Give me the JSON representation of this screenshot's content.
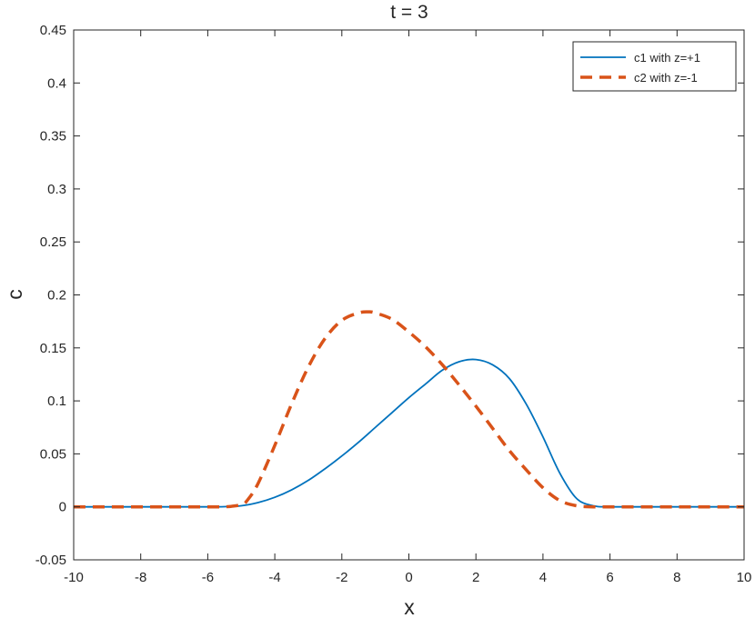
{
  "chart_data": {
    "type": "line",
    "title": "t = 3",
    "xlabel": "x",
    "ylabel": "c",
    "xlim": [
      -10,
      10
    ],
    "ylim": [
      -0.05,
      0.45
    ],
    "xticks": [
      -10,
      -8,
      -6,
      -4,
      -2,
      0,
      2,
      4,
      6,
      8,
      10
    ],
    "yticks": [
      -0.05,
      0,
      0.05,
      0.1,
      0.15,
      0.2,
      0.25,
      0.3,
      0.35,
      0.4,
      0.45
    ],
    "xtick_labels": [
      "-10",
      "-8",
      "-6",
      "-4",
      "-2",
      "0",
      "2",
      "4",
      "6",
      "8",
      "10"
    ],
    "ytick_labels": [
      "-0.05",
      "0",
      "0.05",
      "0.1",
      "0.15",
      "0.2",
      "0.25",
      "0.3",
      "0.35",
      "0.4",
      "0.45"
    ],
    "grid": false,
    "legend_position": "top-right",
    "series": [
      {
        "name": "c1 with z=+1",
        "color": "#0072BD",
        "style": "solid",
        "x": [
          -10,
          -7,
          -6,
          -5.5,
          -5,
          -4.5,
          -4,
          -3.5,
          -3,
          -2.5,
          -2,
          -1.5,
          -1,
          -0.5,
          0,
          0.5,
          1,
          1.5,
          2,
          2.5,
          3,
          3.5,
          4,
          4.5,
          5,
          5.5,
          6,
          8,
          10
        ],
        "y": [
          0,
          0,
          0,
          0.0002,
          0.001,
          0.004,
          0.009,
          0.016,
          0.025,
          0.036,
          0.048,
          0.061,
          0.075,
          0.089,
          0.103,
          0.116,
          0.129,
          0.137,
          0.139,
          0.134,
          0.121,
          0.097,
          0.066,
          0.032,
          0.008,
          0.001,
          0,
          0,
          0
        ]
      },
      {
        "name": "c2 with z=-1",
        "color": "#D95319",
        "style": "dashed",
        "x": [
          -10,
          -7,
          -6,
          -5.5,
          -5,
          -4.8,
          -4.5,
          -4,
          -3.5,
          -3,
          -2.5,
          -2,
          -1.5,
          -1.2,
          -1,
          -0.5,
          0,
          0.5,
          1,
          1.5,
          2,
          2.5,
          3,
          3.5,
          4,
          4.5,
          5,
          5.5,
          6,
          8,
          10
        ],
        "y": [
          0,
          0,
          0,
          0,
          0.002,
          0.007,
          0.022,
          0.058,
          0.097,
          0.132,
          0.159,
          0.176,
          0.183,
          0.184,
          0.183,
          0.177,
          0.165,
          0.151,
          0.134,
          0.115,
          0.095,
          0.074,
          0.053,
          0.035,
          0.018,
          0.006,
          0.001,
          0,
          0,
          0,
          0
        ]
      }
    ]
  }
}
